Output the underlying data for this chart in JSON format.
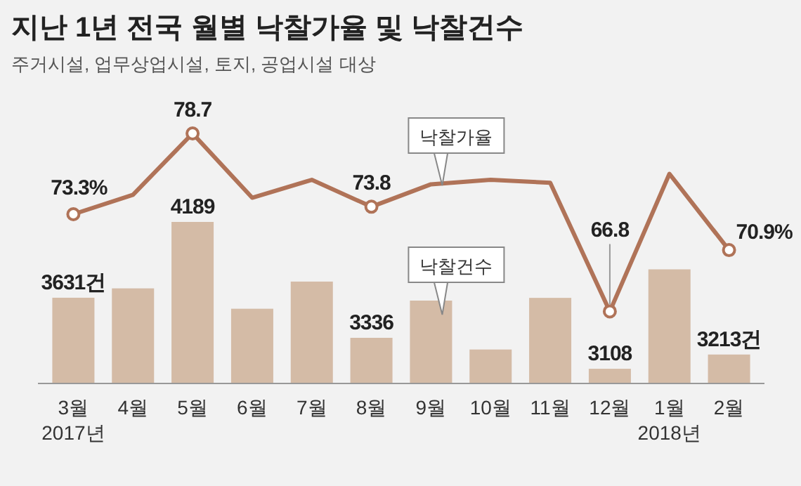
{
  "chart_data": {
    "type": "bar",
    "title": "지난 1년 전국 월별 낙찰가율 및 낙찰건수",
    "subtitle": "주거시설, 업무상업시설, 토지, 공업시설 대상",
    "categories": [
      "3월\n2017년",
      "4월",
      "5월",
      "6월",
      "7월",
      "8월",
      "9월",
      "10월",
      "11월",
      "12월",
      "1월\n2018년",
      "2월"
    ],
    "series": [
      {
        "name": "낙찰건수",
        "color": "#d4bba6",
        "values": [
          3631,
          3700,
          4189,
          3550,
          3750,
          3336,
          3610,
          3250,
          3630,
          3108,
          3840,
          3213
        ],
        "value_labels": [
          "3631건",
          null,
          "4189",
          null,
          null,
          "3336",
          null,
          null,
          null,
          "3108",
          null,
          "3213건"
        ]
      },
      {
        "name": "낙찰가율",
        "type": "line",
        "axis": "y2",
        "color": "#b07358",
        "values": [
          73.3,
          74.6,
          78.7,
          74.4,
          75.6,
          73.8,
          75.3,
          75.6,
          75.4,
          66.8,
          76.0,
          70.9
        ],
        "value_labels": [
          "73.3%",
          null,
          "78.7",
          null,
          null,
          "73.8",
          null,
          null,
          null,
          "66.8",
          null,
          "70.9%"
        ]
      }
    ],
    "ylim": [
      3000,
      4189
    ],
    "tick_labels": "x"
  }
}
